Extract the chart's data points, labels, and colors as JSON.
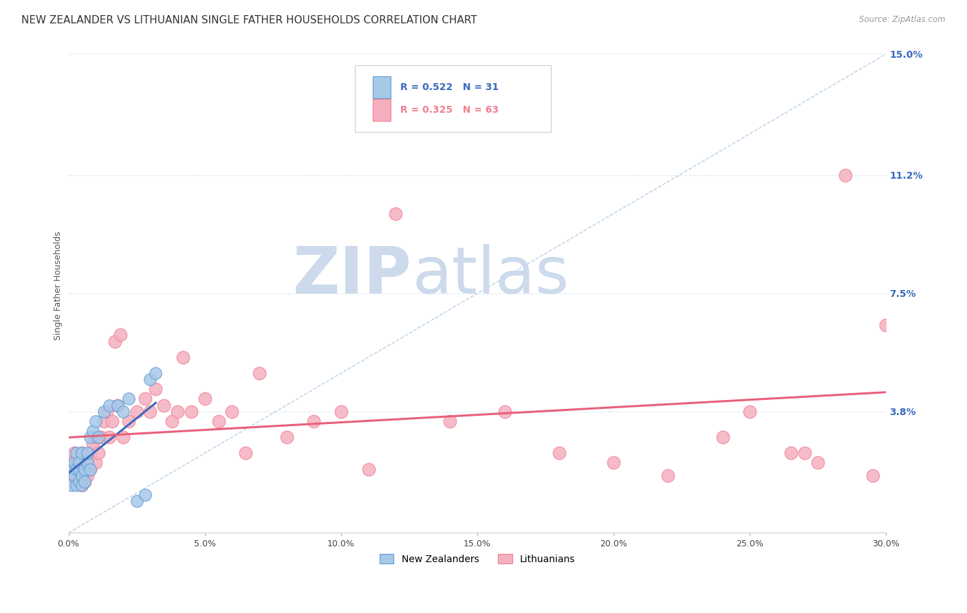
{
  "title": "NEW ZEALANDER VS LITHUANIAN SINGLE FATHER HOUSEHOLDS CORRELATION CHART",
  "source": "Source: ZipAtlas.com",
  "ylabel": "Single Father Households",
  "xlim": [
    0.0,
    0.3
  ],
  "ylim": [
    0.0,
    0.155
  ],
  "xtick_labels": [
    "0.0%",
    "",
    "5.0%",
    "",
    "10.0%",
    "",
    "15.0%",
    "",
    "20.0%",
    "",
    "25.0%",
    "",
    "30.0%"
  ],
  "xtick_vals": [
    0.0,
    0.025,
    0.05,
    0.075,
    0.1,
    0.125,
    0.15,
    0.175,
    0.2,
    0.225,
    0.25,
    0.275,
    0.3
  ],
  "ytick_labels": [
    "3.8%",
    "7.5%",
    "11.2%",
    "15.0%"
  ],
  "ytick_vals": [
    0.038,
    0.075,
    0.112,
    0.15
  ],
  "nz_color": "#a8c8e8",
  "lt_color": "#f5b0c0",
  "nz_edge_color": "#5b9bd5",
  "lt_edge_color": "#f08090",
  "nz_trend_color": "#3a6abf",
  "lt_trend_color": "#e8607a",
  "ref_line_color": "#b8cfe8",
  "watermark_zip": "ZIP",
  "watermark_atlas": "atlas",
  "watermark_color": "#ccdaec",
  "legend_r_nz": "R = 0.522",
  "legend_n_nz": "N = 31",
  "legend_r_lt": "R = 0.325",
  "legend_n_lt": "N = 63",
  "nz_label": "New Zealanders",
  "lt_label": "Lithuanians",
  "background_color": "#ffffff",
  "grid_color": "#dde8f0",
  "nz_x": [
    0.001,
    0.001,
    0.002,
    0.002,
    0.003,
    0.003,
    0.003,
    0.004,
    0.004,
    0.004,
    0.005,
    0.005,
    0.005,
    0.006,
    0.006,
    0.007,
    0.007,
    0.008,
    0.008,
    0.009,
    0.01,
    0.011,
    0.013,
    0.015,
    0.018,
    0.02,
    0.022,
    0.025,
    0.028,
    0.03,
    0.032
  ],
  "nz_y": [
    0.02,
    0.015,
    0.022,
    0.018,
    0.025,
    0.02,
    0.015,
    0.02,
    0.016,
    0.022,
    0.018,
    0.025,
    0.015,
    0.02,
    0.016,
    0.022,
    0.025,
    0.02,
    0.03,
    0.032,
    0.035,
    0.03,
    0.038,
    0.04,
    0.04,
    0.038,
    0.042,
    0.01,
    0.012,
    0.048,
    0.05
  ],
  "lt_x": [
    0.001,
    0.001,
    0.002,
    0.002,
    0.003,
    0.003,
    0.004,
    0.004,
    0.005,
    0.005,
    0.005,
    0.006,
    0.006,
    0.007,
    0.007,
    0.008,
    0.008,
    0.009,
    0.01,
    0.01,
    0.011,
    0.012,
    0.013,
    0.014,
    0.015,
    0.016,
    0.017,
    0.018,
    0.019,
    0.02,
    0.022,
    0.025,
    0.028,
    0.03,
    0.032,
    0.035,
    0.038,
    0.04,
    0.042,
    0.045,
    0.05,
    0.055,
    0.06,
    0.065,
    0.07,
    0.08,
    0.09,
    0.1,
    0.11,
    0.12,
    0.14,
    0.16,
    0.18,
    0.2,
    0.22,
    0.24,
    0.25,
    0.265,
    0.27,
    0.275,
    0.285,
    0.295,
    0.3
  ],
  "lt_y": [
    0.022,
    0.018,
    0.02,
    0.025,
    0.018,
    0.022,
    0.02,
    0.016,
    0.018,
    0.025,
    0.015,
    0.02,
    0.016,
    0.022,
    0.018,
    0.025,
    0.02,
    0.028,
    0.022,
    0.03,
    0.025,
    0.03,
    0.035,
    0.038,
    0.03,
    0.035,
    0.06,
    0.04,
    0.062,
    0.03,
    0.035,
    0.038,
    0.042,
    0.038,
    0.045,
    0.04,
    0.035,
    0.038,
    0.055,
    0.038,
    0.042,
    0.035,
    0.038,
    0.025,
    0.05,
    0.03,
    0.035,
    0.038,
    0.02,
    0.1,
    0.035,
    0.038,
    0.025,
    0.022,
    0.018,
    0.03,
    0.038,
    0.025,
    0.025,
    0.022,
    0.112,
    0.018,
    0.065
  ]
}
